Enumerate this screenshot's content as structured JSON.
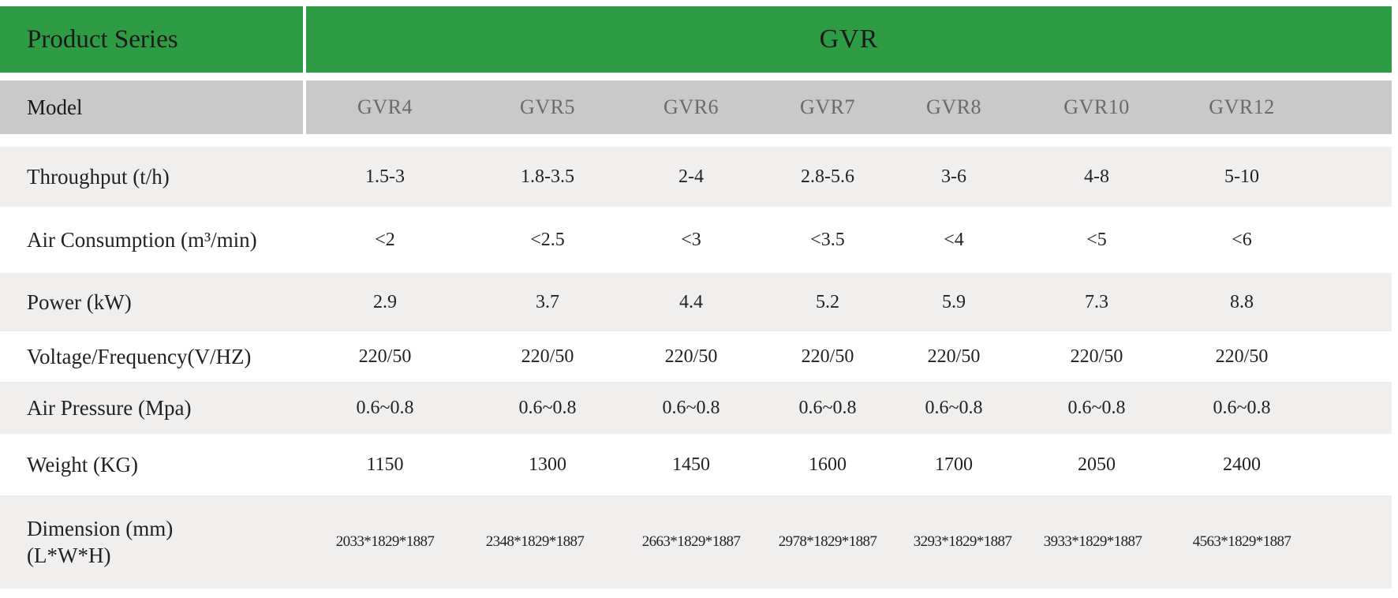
{
  "header": {
    "series_label": "Product Series",
    "series_value": "GVR"
  },
  "model_row": {
    "label": "Model",
    "models": [
      "GVR4",
      "GVR5",
      "GVR6",
      "GVR7",
      "GVR8",
      "GVR10",
      "GVR12"
    ]
  },
  "rows": [
    {
      "label": "Throughput (t/h)",
      "values": [
        "1.5-3",
        "1.8-3.5",
        "2-4",
        "2.8-5.6",
        "3-6",
        "4-8",
        "5-10"
      ]
    },
    {
      "label": "Air Consumption (m³/min)",
      "values": [
        "<2",
        "<2.5",
        "<3",
        "<3.5",
        "<4",
        "<5",
        "<6"
      ]
    },
    {
      "label": "Power (kW)",
      "values": [
        "2.9",
        "3.7",
        "4.4",
        "5.2",
        "5.9",
        "7.3",
        "8.8"
      ]
    },
    {
      "label": "Voltage/Frequency(V/HZ)",
      "values": [
        "220/50",
        "220/50",
        "220/50",
        "220/50",
        "220/50",
        "220/50",
        "220/50"
      ]
    },
    {
      "label": "Air Pressure (Mpa)",
      "values": [
        "0.6~0.8",
        "0.6~0.8",
        "0.6~0.8",
        "0.6~0.8",
        "0.6~0.8",
        "0.6~0.8",
        "0.6~0.8"
      ]
    },
    {
      "label": "Weight (KG)",
      "values": [
        "1150",
        "1300",
        "1450",
        "1600",
        "1700",
        "2050",
        "2400"
      ]
    }
  ],
  "dimension_row": {
    "label_line1": "Dimension (mm)",
    "label_line2": "(L*W*H)",
    "values": [
      "2033*1829*1887",
      "2348*1829*1887",
      "2663*1829*1887",
      "2978*1829*1887",
      "3293*1829*1887",
      "3933*1829*1887",
      "4563*1829*1887"
    ]
  },
  "colors": {
    "header_green": "#2e9b45",
    "model_grey": "#c9c9c9",
    "row_tint": "#f1eeee"
  }
}
